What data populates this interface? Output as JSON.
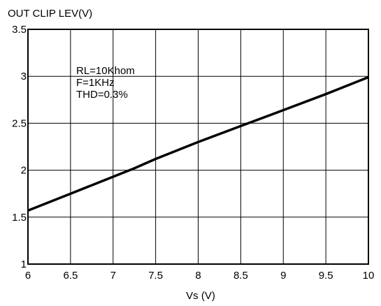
{
  "chart_data": {
    "type": "line",
    "title": "",
    "ylabel": "OUT CLIP LEV(V)",
    "xlabel": "Vs (V)",
    "xlim": [
      6,
      10
    ],
    "ylim": [
      1,
      3.5
    ],
    "x_ticks": [
      6,
      6.5,
      7,
      7.5,
      8,
      8.5,
      9,
      9.5,
      10
    ],
    "x_tick_labels": [
      "6",
      "6.5",
      "7",
      "7.5",
      "8",
      "8.5",
      "9",
      "9.5",
      "10"
    ],
    "y_ticks": [
      1,
      1.5,
      2,
      2.5,
      3,
      3.5
    ],
    "y_tick_labels": [
      "1",
      "1.5",
      "2",
      "2.5",
      "3",
      "3.5"
    ],
    "grid": true,
    "annotations": [
      "RL=10Khom",
      "F=1KHz",
      "THD=0.3%"
    ],
    "series": [
      {
        "x": [
          6,
          6.5,
          7,
          7.25,
          7.5,
          8,
          8.5,
          9,
          9.5,
          10
        ],
        "y": [
          1.57,
          1.75,
          1.93,
          2.02,
          2.12,
          2.3,
          2.47,
          2.64,
          2.81,
          2.99
        ],
        "color": "#000000"
      }
    ]
  }
}
